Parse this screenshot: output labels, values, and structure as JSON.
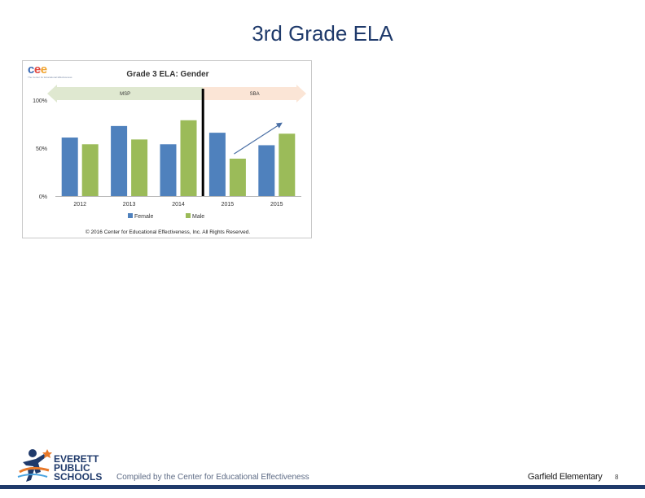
{
  "slide": {
    "title": "3rd Grade ELA",
    "footer": "Compiled by the Center for Educational Effectiveness",
    "school": "Garfield Elementary",
    "page_number": "8"
  },
  "logos": {
    "district_lines": [
      "EVERETT",
      "PUBLIC",
      "SCHOOLS"
    ],
    "cee_letters": "cee",
    "cee_tagline": "The Center for Educational Effectiveness"
  },
  "colors": {
    "female": "#4f81bd",
    "male": "#9bbb59",
    "msp_band": "#dfe8d0",
    "sba_band": "#fbe5d6",
    "trend_arrow": "#4a6fa5",
    "title": "#1f3a6b"
  },
  "chart_data": {
    "type": "bar",
    "title": "Grade 3 ELA: Gender",
    "categories": [
      "2012",
      "2013",
      "2014",
      "2015",
      "2015"
    ],
    "series": [
      {
        "name": "Female",
        "values": [
          61,
          73,
          54,
          66,
          53
        ]
      },
      {
        "name": "Male",
        "values": [
          54,
          59,
          79,
          39,
          65
        ]
      }
    ],
    "ylim": [
      0,
      100
    ],
    "yticks": [
      "0%",
      "50%",
      "100%"
    ],
    "ytick_values": [
      0,
      50,
      100
    ],
    "grid": false,
    "legend_position": "bottom",
    "assessment_bands": [
      {
        "label": "MSP",
        "from_category": 0,
        "to_category": 2
      },
      {
        "label": "SBA",
        "from_category": 3,
        "to_category": 4
      }
    ],
    "divider_after_category": 2,
    "trend_arrow": {
      "from": {
        "category": 3,
        "value": 44
      },
      "to": {
        "category": 4,
        "value": 76
      }
    },
    "copyright": "© 2016 Center for Educational Effectiveness, Inc. All Rights Reserved."
  }
}
